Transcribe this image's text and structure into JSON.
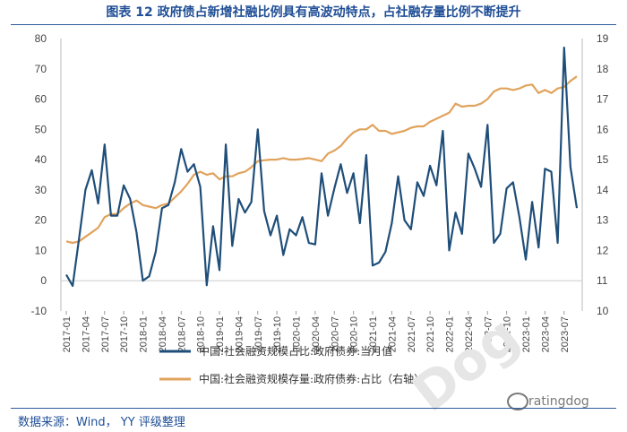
{
  "header": {
    "title": "图表 12 政府债占新增社融比例具有高波动特点，占社融存量比例不断提升"
  },
  "footer": {
    "source": "数据来源：Wind， YY 评级整理"
  },
  "watermark": {
    "text": "ratingdog",
    "big": "Dog"
  },
  "colors": {
    "series1": "#1f4e79",
    "series2": "#e0a35c",
    "title": "#1f4e96"
  },
  "chart_data": {
    "type": "line",
    "x_labels": [
      "2017-01",
      "2017-04",
      "2017-07",
      "2017-10",
      "2018-01",
      "2018-04",
      "2018-07",
      "2018-10",
      "2019-01",
      "2019-04",
      "2019-07",
      "2019-10",
      "2020-01",
      "2020-04",
      "2020-07",
      "2020-10",
      "2021-01",
      "2021-04",
      "2021-07",
      "2021-10",
      "2022-01",
      "2022-04",
      "2022-07",
      "2022-10",
      "2023-01",
      "2023-04",
      "2023-07"
    ],
    "ylim_left": [
      -10,
      80
    ],
    "ylim_right": [
      10,
      19
    ],
    "y_ticks_left": [
      "-10",
      "0",
      "10",
      "20",
      "30",
      "40",
      "50",
      "60",
      "70",
      "80"
    ],
    "y_ticks_right": [
      "10",
      "11",
      "12",
      "13",
      "14",
      "15",
      "16",
      "17",
      "18",
      "19"
    ],
    "series": [
      {
        "name": "中国:社会融资规模占比:政府债券:当月值",
        "axis": "left",
        "values": [
          2,
          -1.7,
          14,
          30,
          36.5,
          25.5,
          45,
          21.5,
          21.5,
          31.5,
          27,
          16,
          0,
          1.5,
          9.5,
          24,
          25,
          32.5,
          43.5,
          36,
          38.5,
          31,
          -1.5,
          18,
          3.5,
          45,
          11.5,
          27,
          22.5,
          26,
          50,
          23,
          15,
          21.5,
          8.5,
          17,
          15,
          21,
          12.5,
          12,
          35.5,
          21.5,
          30.5,
          38.5,
          29,
          35.5,
          19,
          41.5,
          5,
          6,
          9.5,
          19,
          34.5,
          20,
          17,
          32.5,
          28,
          38,
          31.5,
          49.5,
          10,
          22.5,
          15.5,
          42,
          37,
          31,
          51.5,
          12.5,
          15.5,
          30.5,
          32.5,
          21,
          7,
          26,
          11,
          37,
          36,
          12.5,
          77,
          37.5,
          24
        ]
      },
      {
        "name": "中国:社会融资规模存量:政府债券:占比（右轴）",
        "axis": "right",
        "values": [
          12.3,
          12.25,
          12.3,
          12.45,
          12.6,
          12.75,
          13.1,
          13.2,
          13.2,
          13.4,
          13.55,
          13.65,
          13.5,
          13.45,
          13.4,
          13.5,
          13.55,
          13.75,
          13.95,
          14.2,
          14.5,
          14.6,
          14.5,
          14.55,
          14.35,
          14.45,
          14.45,
          14.55,
          14.6,
          14.75,
          14.95,
          14.98,
          15.0,
          15.0,
          15.05,
          15.0,
          15.0,
          15.02,
          15.05,
          15.0,
          14.95,
          15.2,
          15.3,
          15.45,
          15.7,
          15.9,
          16.0,
          16.0,
          16.15,
          15.95,
          15.95,
          15.85,
          15.9,
          15.95,
          16.05,
          16.1,
          16.1,
          16.25,
          16.35,
          16.45,
          16.55,
          16.85,
          16.75,
          16.78,
          16.78,
          16.85,
          17.0,
          17.25,
          17.35,
          17.35,
          17.3,
          17.35,
          17.45,
          17.48,
          17.2,
          17.3,
          17.2,
          17.35,
          17.4,
          17.6,
          17.75
        ]
      }
    ],
    "legend_position": "bottom",
    "grid": false
  }
}
